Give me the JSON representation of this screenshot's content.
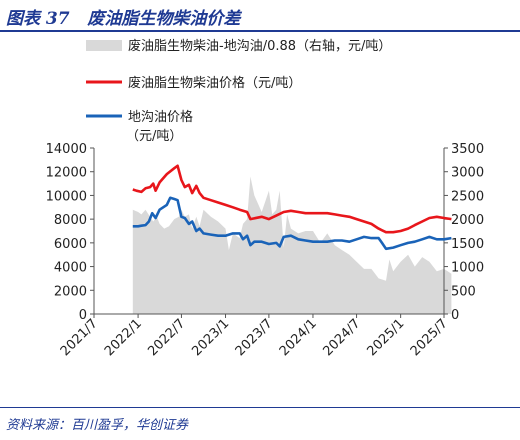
{
  "header": {
    "figure_label": "图表 37",
    "title": "废油脂生物柴油价差"
  },
  "footer": {
    "source": "资料来源：百川盈孚，华创证券"
  },
  "chart_data": {
    "type": "line",
    "legend": [
      {
        "name": "废油脂生物柴油-地沟油/0.88（右轴，元/吨）",
        "color": "#d9d9d9",
        "kind": "area"
      },
      {
        "name": "废油脂生物柴油价格（元/吨）",
        "color": "#e8161b",
        "kind": "line"
      },
      {
        "name": "地沟油价格",
        "name_line2": "（元/吨）",
        "color": "#1a63b8",
        "kind": "line"
      }
    ],
    "x_ticks": [
      "2021/7",
      "2022/1",
      "2022/7",
      "2023/1",
      "2023/7",
      "2024/1",
      "2024/7",
      "2025/1",
      "2025/7"
    ],
    "y_left": {
      "min": 0,
      "max": 14000,
      "ticks": [
        0,
        2000,
        4000,
        6000,
        8000,
        10000,
        12000,
        14000
      ]
    },
    "y_right": {
      "min": 0,
      "max": 3500,
      "ticks": [
        0,
        500,
        1000,
        1500,
        2000,
        2500,
        3000,
        3500
      ]
    },
    "series": [
      {
        "name": "废油脂生物柴油价格（元/吨）",
        "axis": "left",
        "color": "#e8161b",
        "points": [
          [
            "2021-12-10",
            10500
          ],
          [
            "2021-12-25",
            10400
          ],
          [
            "2022-01-15",
            10300
          ],
          [
            "2022-02-01",
            10600
          ],
          [
            "2022-02-20",
            10700
          ],
          [
            "2022-03-05",
            11000
          ],
          [
            "2022-03-15",
            10400
          ],
          [
            "2022-04-01",
            11100
          ],
          [
            "2022-05-01",
            11800
          ],
          [
            "2022-06-01",
            12300
          ],
          [
            "2022-06-15",
            12500
          ],
          [
            "2022-07-01",
            11300
          ],
          [
            "2022-07-15",
            10700
          ],
          [
            "2022-08-01",
            10900
          ],
          [
            "2022-08-15",
            10200
          ],
          [
            "2022-09-01",
            10800
          ],
          [
            "2022-09-15",
            10200
          ],
          [
            "2022-10-01",
            9800
          ],
          [
            "2022-11-01",
            9600
          ],
          [
            "2022-12-01",
            9400
          ],
          [
            "2023-01-01",
            9200
          ],
          [
            "2023-02-01",
            9000
          ],
          [
            "2023-03-01",
            8800
          ],
          [
            "2023-04-01",
            8600
          ],
          [
            "2023-04-15",
            8000
          ],
          [
            "2023-06-01",
            8200
          ],
          [
            "2023-07-01",
            8000
          ],
          [
            "2023-08-01",
            8300
          ],
          [
            "2023-09-01",
            8600
          ],
          [
            "2023-10-01",
            8700
          ],
          [
            "2023-11-01",
            8600
          ],
          [
            "2023-12-01",
            8500
          ],
          [
            "2024-01-01",
            8500
          ],
          [
            "2024-02-01",
            8500
          ],
          [
            "2024-03-01",
            8500
          ],
          [
            "2024-04-01",
            8400
          ],
          [
            "2024-05-01",
            8300
          ],
          [
            "2024-06-01",
            8200
          ],
          [
            "2024-07-01",
            8000
          ],
          [
            "2024-08-01",
            7800
          ],
          [
            "2024-09-01",
            7600
          ],
          [
            "2024-10-01",
            7200
          ],
          [
            "2024-11-01",
            6900
          ],
          [
            "2024-12-01",
            6900
          ],
          [
            "2025-01-01",
            7000
          ],
          [
            "2025-02-01",
            7200
          ],
          [
            "2025-03-01",
            7500
          ],
          [
            "2025-04-01",
            7800
          ],
          [
            "2025-05-01",
            8100
          ],
          [
            "2025-06-01",
            8200
          ],
          [
            "2025-07-01",
            8100
          ],
          [
            "2025-08-01",
            8000
          ]
        ]
      },
      {
        "name": "地沟油价格（元/吨）",
        "axis": "left",
        "color": "#1a63b8",
        "points": [
          [
            "2021-12-10",
            7400
          ],
          [
            "2022-01-01",
            7400
          ],
          [
            "2022-01-15",
            7450
          ],
          [
            "2022-02-01",
            7500
          ],
          [
            "2022-02-15",
            7800
          ],
          [
            "2022-03-01",
            8500
          ],
          [
            "2022-03-15",
            8100
          ],
          [
            "2022-04-01",
            8800
          ],
          [
            "2022-05-01",
            9200
          ],
          [
            "2022-05-15",
            9800
          ],
          [
            "2022-06-01",
            9700
          ],
          [
            "2022-06-15",
            9600
          ],
          [
            "2022-07-01",
            8200
          ],
          [
            "2022-07-15",
            8100
          ],
          [
            "2022-08-01",
            7600
          ],
          [
            "2022-08-15",
            7800
          ],
          [
            "2022-09-01",
            7000
          ],
          [
            "2022-09-15",
            7200
          ],
          [
            "2022-10-01",
            6800
          ],
          [
            "2022-11-01",
            6700
          ],
          [
            "2022-12-01",
            6600
          ],
          [
            "2023-01-01",
            6600
          ],
          [
            "2023-02-01",
            6800
          ],
          [
            "2023-03-01",
            6800
          ],
          [
            "2023-03-15",
            6300
          ],
          [
            "2023-04-01",
            6600
          ],
          [
            "2023-04-15",
            5800
          ],
          [
            "2023-05-01",
            6100
          ],
          [
            "2023-06-01",
            6100
          ],
          [
            "2023-07-01",
            5900
          ],
          [
            "2023-08-01",
            6000
          ],
          [
            "2023-08-15",
            5700
          ],
          [
            "2023-09-01",
            6500
          ],
          [
            "2023-10-01",
            6600
          ],
          [
            "2023-11-01",
            6300
          ],
          [
            "2023-12-01",
            6200
          ],
          [
            "2024-01-01",
            6100
          ],
          [
            "2024-02-01",
            6100
          ],
          [
            "2024-03-01",
            6100
          ],
          [
            "2024-04-01",
            6200
          ],
          [
            "2024-05-01",
            6200
          ],
          [
            "2024-06-01",
            6100
          ],
          [
            "2024-07-01",
            6300
          ],
          [
            "2024-08-01",
            6500
          ],
          [
            "2024-09-01",
            6400
          ],
          [
            "2024-10-01",
            6400
          ],
          [
            "2024-10-15",
            6000
          ],
          [
            "2024-11-01",
            5500
          ],
          [
            "2024-12-01",
            5600
          ],
          [
            "2025-01-01",
            5800
          ],
          [
            "2025-02-01",
            6000
          ],
          [
            "2025-03-01",
            6100
          ],
          [
            "2025-04-01",
            6300
          ],
          [
            "2025-05-01",
            6500
          ],
          [
            "2025-06-01",
            6300
          ],
          [
            "2025-07-01",
            6300
          ],
          [
            "2025-08-01",
            6400
          ]
        ]
      },
      {
        "name": "废油脂生物柴油-地沟油/0.88（右轴，元/吨）",
        "axis": "right",
        "color": "#d9d9d9",
        "kind": "area",
        "points": [
          [
            "2021-12-10",
            2200
          ],
          [
            "2022-01-01",
            2150
          ],
          [
            "2022-01-15",
            2100
          ],
          [
            "2022-02-01",
            2200
          ],
          [
            "2022-02-20",
            2050
          ],
          [
            "2022-03-05",
            1950
          ],
          [
            "2022-03-20",
            2050
          ],
          [
            "2022-04-01",
            1900
          ],
          [
            "2022-04-20",
            1800
          ],
          [
            "2022-05-10",
            1850
          ],
          [
            "2022-06-01",
            2000
          ],
          [
            "2022-06-20",
            2050
          ],
          [
            "2022-07-01",
            2200
          ],
          [
            "2022-07-15",
            2050
          ],
          [
            "2022-08-01",
            2100
          ],
          [
            "2022-08-15",
            1800
          ],
          [
            "2022-09-01",
            2050
          ],
          [
            "2022-09-15",
            1850
          ],
          [
            "2022-10-01",
            2200
          ],
          [
            "2022-11-01",
            2050
          ],
          [
            "2022-12-01",
            1950
          ],
          [
            "2023-01-01",
            1800
          ],
          [
            "2023-01-15",
            1350
          ],
          [
            "2023-02-01",
            1700
          ],
          [
            "2023-03-01",
            1600
          ],
          [
            "2023-03-15",
            1900
          ],
          [
            "2023-04-01",
            2000
          ],
          [
            "2023-04-15",
            2900
          ],
          [
            "2023-05-01",
            2500
          ],
          [
            "2023-06-01",
            2150
          ],
          [
            "2023-07-01",
            2600
          ],
          [
            "2023-07-15",
            2100
          ],
          [
            "2023-08-01",
            2200
          ],
          [
            "2023-08-15",
            2600
          ],
          [
            "2023-09-01",
            1400
          ],
          [
            "2023-09-15",
            2100
          ],
          [
            "2023-10-01",
            1800
          ],
          [
            "2023-11-01",
            1700
          ],
          [
            "2023-12-01",
            1750
          ],
          [
            "2024-01-01",
            1750
          ],
          [
            "2024-02-01",
            1500
          ],
          [
            "2024-03-01",
            1700
          ],
          [
            "2024-04-01",
            1450
          ],
          [
            "2024-05-01",
            1350
          ],
          [
            "2024-06-01",
            1250
          ],
          [
            "2024-07-01",
            1100
          ],
          [
            "2024-08-01",
            950
          ],
          [
            "2024-09-01",
            950
          ],
          [
            "2024-10-01",
            750
          ],
          [
            "2024-11-01",
            700
          ],
          [
            "2024-11-15",
            1150
          ],
          [
            "2024-12-01",
            900
          ],
          [
            "2025-01-01",
            1100
          ],
          [
            "2025-02-01",
            1250
          ],
          [
            "2025-03-01",
            1000
          ],
          [
            "2025-04-01",
            1200
          ],
          [
            "2025-05-01",
            1100
          ],
          [
            "2025-06-01",
            900
          ],
          [
            "2025-07-01",
            950
          ],
          [
            "2025-08-01",
            850
          ]
        ]
      }
    ]
  }
}
